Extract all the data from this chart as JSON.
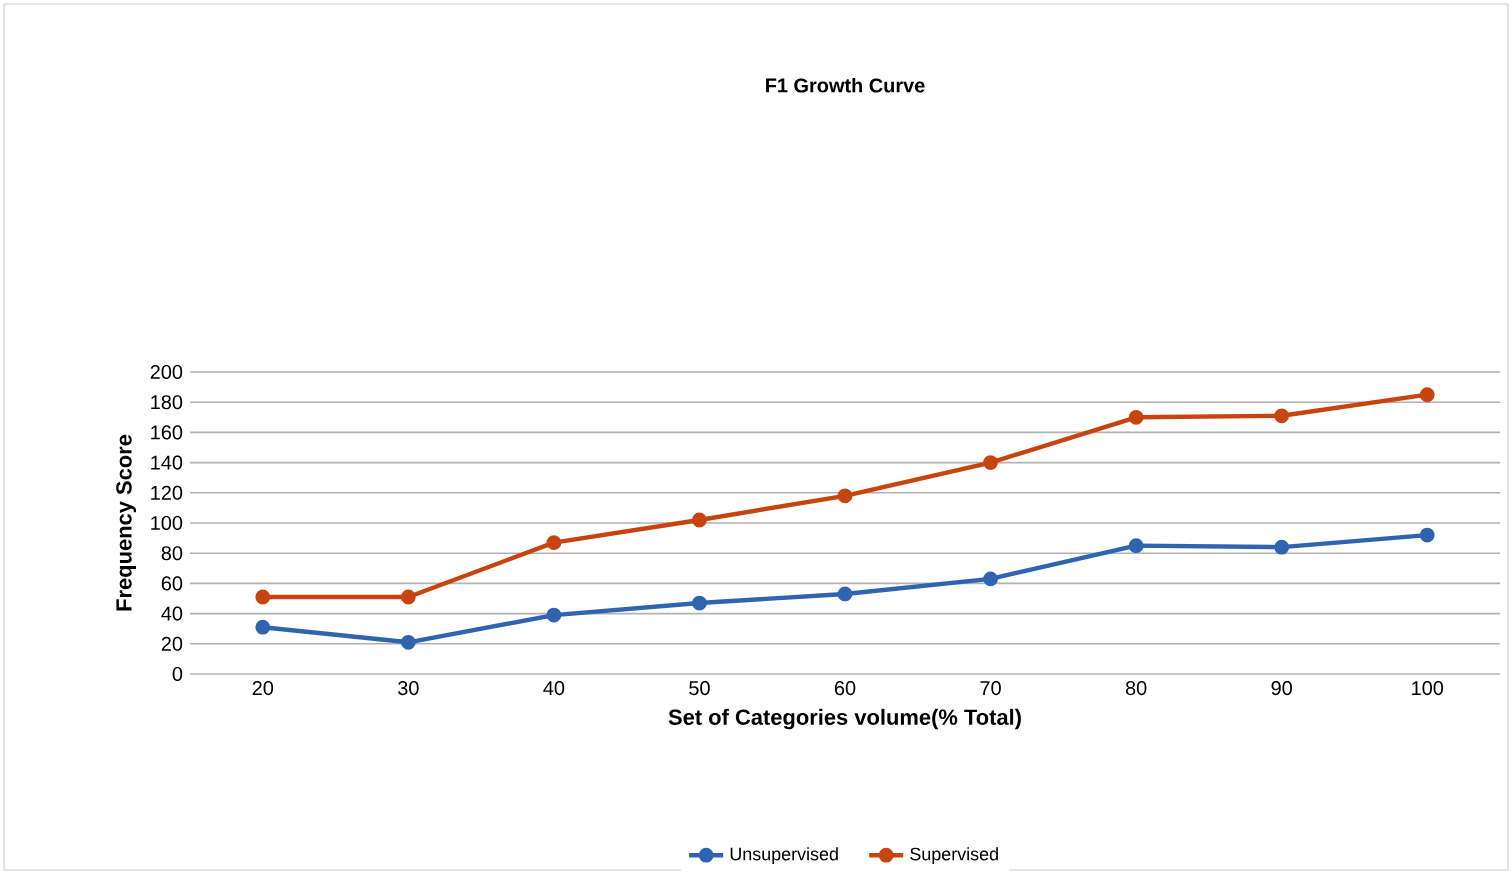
{
  "chart_data": {
    "type": "line",
    "title": "F1 Growth Curve",
    "xlabel": "Set of Categories volume(% Total)",
    "ylabel": "Frequency Score",
    "categories": [
      "20",
      "30",
      "40",
      "50",
      "60",
      "70",
      "80",
      "90",
      "100"
    ],
    "series": [
      {
        "name": "Unsupervised",
        "color": "#2e64b0",
        "values": [
          31,
          21,
          39,
          47,
          53,
          63,
          85,
          84,
          92
        ]
      },
      {
        "name": "Supervised",
        "color": "#c8440e",
        "values": [
          51,
          51,
          87,
          102,
          118,
          140,
          170,
          171,
          185
        ]
      }
    ],
    "ylim": [
      0,
      200
    ],
    "yticks": [
      0,
      20,
      40,
      60,
      80,
      100,
      120,
      140,
      160,
      180,
      200
    ],
    "grid": "y",
    "legend": "bottom",
    "marker": "circle",
    "line_style": "solid"
  }
}
